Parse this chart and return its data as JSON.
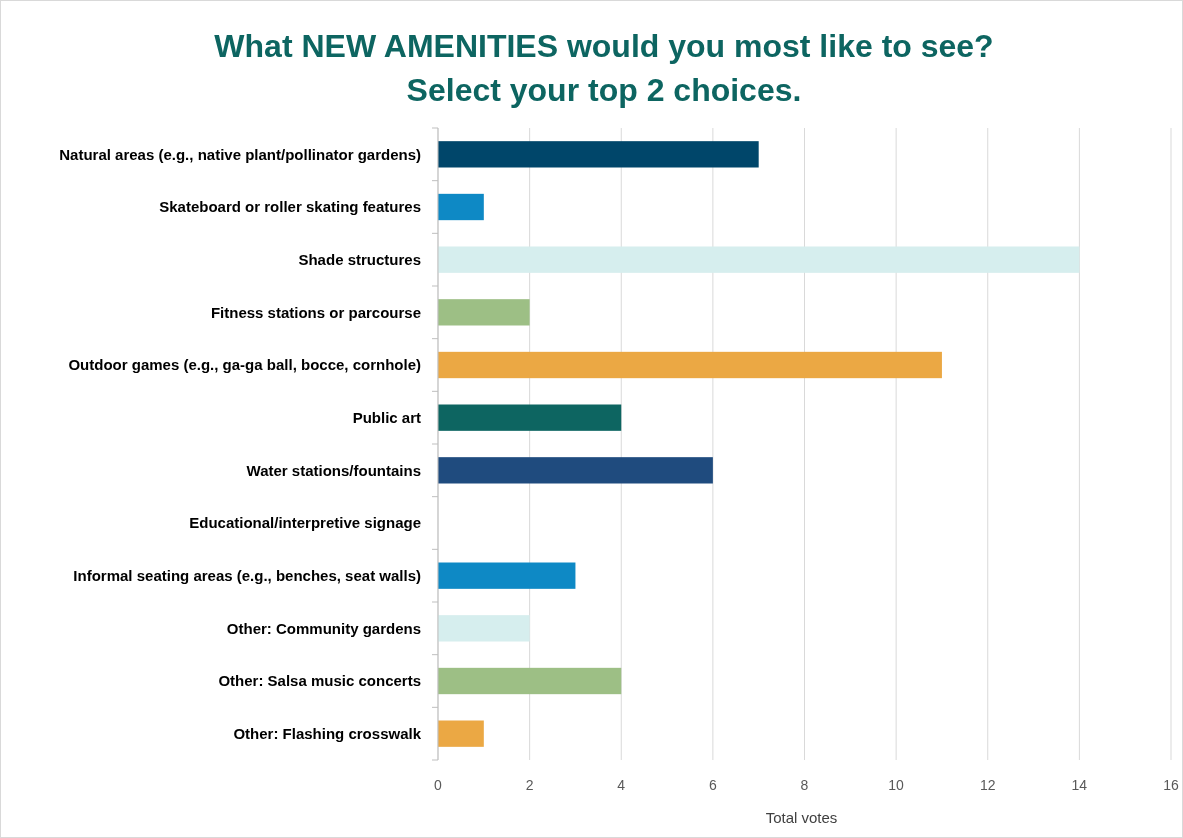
{
  "chart_data": {
    "type": "bar",
    "orientation": "horizontal",
    "title": "What NEW AMENITIES would you most like to see? Select your top 2 choices.",
    "xlabel": "Total votes",
    "categories": [
      "Natural areas (e.g., native plant/pollinator gardens)",
      "Skateboard or roller skating features",
      "Shade structures",
      "Fitness stations or parcourse",
      "Outdoor games (e.g., ga-ga ball, bocce, cornhole)",
      "Public art",
      "Water stations/fountains",
      "Educational/interpretive signage",
      "Informal seating areas (e.g., benches, seat walls)",
      "Other: Community gardens",
      "Other: Salsa music concerts",
      "Other: Flashing crosswalk"
    ],
    "values": [
      7,
      1,
      14,
      2,
      11,
      4,
      6,
      0,
      3,
      2,
      4,
      1
    ],
    "colors": [
      "#00466a",
      "#0e89c5",
      "#d6eeee",
      "#9dbf85",
      "#eba844",
      "#0d6561",
      "#1f4b7e",
      "#0d6561",
      "#0e89c5",
      "#d6eeee",
      "#9dbf85",
      "#eba844"
    ],
    "xlim": [
      0,
      16
    ],
    "xticks": [
      0,
      2,
      4,
      6,
      8,
      10,
      12,
      14,
      16
    ],
    "grid": "x"
  }
}
